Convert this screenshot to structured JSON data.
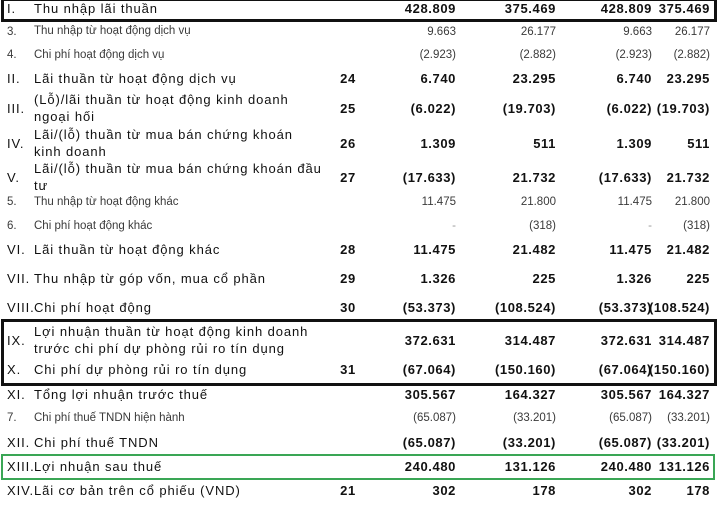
{
  "rows": [
    {
      "idx": "I.",
      "label": "Thu nhập lãi thuần",
      "code": "",
      "v1": "428.809",
      "v2": "375.469",
      "v3": "428.809",
      "v4": "375.469",
      "style": "bold"
    },
    {
      "idx": "3.",
      "label": "Thu nhập từ hoạt động dịch vụ",
      "code": "",
      "v1": "9.663",
      "v2": "26.177",
      "v3": "9.663",
      "v4": "26.177",
      "style": "light"
    },
    {
      "idx": "4.",
      "label": "Chi phí hoạt động dịch vụ",
      "code": "",
      "v1": "(2.923)",
      "v2": "(2.882)",
      "v3": "(2.923)",
      "v4": "(2.882)",
      "style": "light"
    },
    {
      "idx": "II.",
      "label": "Lãi thuần từ hoạt động dịch vụ",
      "code": "24",
      "v1": "6.740",
      "v2": "23.295",
      "v3": "6.740",
      "v4": "23.295",
      "style": "bold"
    },
    {
      "idx": "III.",
      "label": "(Lỗ)/lãi thuần từ hoạt động kinh doanh ngoại hối",
      "code": "25",
      "v1": "(6.022)",
      "v2": "(19.703)",
      "v3": "(6.022)",
      "v4": "(19.703)",
      "style": "bold"
    },
    {
      "idx": "IV.",
      "label": "Lãi/(lỗ) thuần từ mua bán chứng khoán kinh doanh",
      "code": "26",
      "v1": "1.309",
      "v2": "511",
      "v3": "1.309",
      "v4": "511",
      "style": "bold"
    },
    {
      "idx": "V.",
      "label": "Lãi/(lỗ) thuần từ mua bán chứng khoán đầu tư",
      "code": "27",
      "v1": "(17.633)",
      "v2": "21.732",
      "v3": "(17.633)",
      "v4": "21.732",
      "style": "bold"
    },
    {
      "idx": "5.",
      "label": "Thu nhập từ hoạt động khác",
      "code": "",
      "v1": "11.475",
      "v2": "21.800",
      "v3": "11.475",
      "v4": "21.800",
      "style": "light"
    },
    {
      "idx": "6.",
      "label": "Chi phí hoạt động khác",
      "code": "",
      "v1": "-",
      "v2": "(318)",
      "v3": "-",
      "v4": "(318)",
      "style": "light"
    },
    {
      "idx": "VI.",
      "label": "Lãi thuần từ hoạt động khác",
      "code": "28",
      "v1": "11.475",
      "v2": "21.482",
      "v3": "11.475",
      "v4": "21.482",
      "style": "bold"
    },
    {
      "idx": "VII.",
      "label": "Thu nhập từ góp vốn, mua cổ phần",
      "code": "29",
      "v1": "1.326",
      "v2": "225",
      "v3": "1.326",
      "v4": "225",
      "style": "bold"
    },
    {
      "idx": "VIII.",
      "label": "Chi phí hoạt động",
      "code": "30",
      "v1": "(53.373)",
      "v2": "(108.524)",
      "v3": "(53.373)",
      "v4": "(108.524)",
      "style": "bold"
    },
    {
      "idx": "IX.",
      "label": "Lợi nhuận thuần từ hoạt động kinh doanh trước chi phí dự phòng rủi ro tín dụng",
      "code": "",
      "v1": "372.631",
      "v2": "314.487",
      "v3": "372.631",
      "v4": "314.487",
      "style": "bold"
    },
    {
      "idx": "X.",
      "label": "Chi phí dự phòng rủi ro tín dụng",
      "code": "31",
      "v1": "(67.064)",
      "v2": "(150.160)",
      "v3": "(67.064)",
      "v4": "(150.160)",
      "style": "bold"
    },
    {
      "idx": "XI.",
      "label": "Tổng lợi nhuận trước thuế",
      "code": "",
      "v1": "305.567",
      "v2": "164.327",
      "v3": "305.567",
      "v4": "164.327",
      "style": "bold"
    },
    {
      "idx": "7.",
      "label": "Chi phí thuế TNDN hiện hành",
      "code": "",
      "v1": "(65.087)",
      "v2": "(33.201)",
      "v3": "(65.087)",
      "v4": "(33.201)",
      "style": "light"
    },
    {
      "idx": "XII.",
      "label": "Chi phí thuế TNDN",
      "code": "",
      "v1": "(65.087)",
      "v2": "(33.201)",
      "v3": "(65.087)",
      "v4": "(33.201)",
      "style": "bold"
    },
    {
      "idx": "XIII.",
      "label": "Lợi nhuận sau thuế",
      "code": "",
      "v1": "240.480",
      "v2": "131.126",
      "v3": "240.480",
      "v4": "131.126",
      "style": "bold"
    },
    {
      "idx": "XIV.",
      "label": "Lãi cơ bản trên cổ phiếu (VND)",
      "code": "21",
      "v1": "302",
      "v2": "178",
      "v3": "302",
      "v4": "178",
      "style": "bold"
    }
  ],
  "highlight_colors": {
    "black": "#111111",
    "green": "#3aa655"
  }
}
